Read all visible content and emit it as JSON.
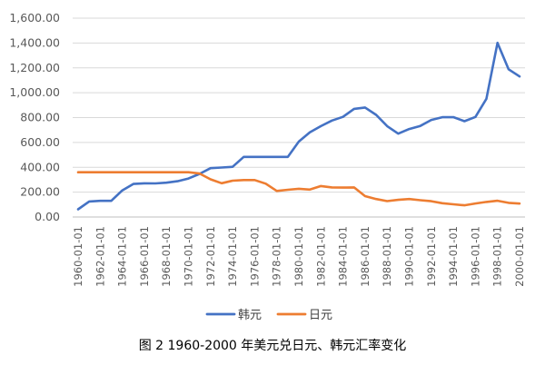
{
  "chart_data": {
    "type": "line",
    "title": "",
    "xlabel": "",
    "ylabel": "",
    "ylim": [
      0,
      1600
    ],
    "yticks": [
      "0.00",
      "200.00",
      "400.00",
      "600.00",
      "800.00",
      "1,000.00",
      "1,200.00",
      "1,400.00",
      "1,600.00"
    ],
    "ytick_values": [
      0,
      200,
      400,
      600,
      800,
      1000,
      1200,
      1400,
      1600
    ],
    "xtick_labels": [
      "1960-01-01",
      "1962-01-01",
      "1964-01-01",
      "1966-01-01",
      "1968-01-01",
      "1970-01-01",
      "1972-01-01",
      "1974-01-01",
      "1976-01-01",
      "1978-01-01",
      "1980-01-01",
      "1982-01-01",
      "1984-01-01",
      "1986-01-01",
      "1988-01-01",
      "1990-01-01",
      "1992-01-01",
      "1994-01-01",
      "1996-01-01",
      "1998-01-01",
      "2000-01-01"
    ],
    "x": [
      "1960-01-01",
      "1961-01-01",
      "1962-01-01",
      "1963-01-01",
      "1964-01-01",
      "1965-01-01",
      "1966-01-01",
      "1967-01-01",
      "1968-01-01",
      "1969-01-01",
      "1970-01-01",
      "1971-01-01",
      "1972-01-01",
      "1973-01-01",
      "1974-01-01",
      "1975-01-01",
      "1976-01-01",
      "1977-01-01",
      "1978-01-01",
      "1979-01-01",
      "1980-01-01",
      "1981-01-01",
      "1982-01-01",
      "1983-01-01",
      "1984-01-01",
      "1985-01-01",
      "1986-01-01",
      "1987-01-01",
      "1988-01-01",
      "1989-01-01",
      "1990-01-01",
      "1991-01-01",
      "1992-01-01",
      "1993-01-01",
      "1994-01-01",
      "1995-01-01",
      "1996-01-01",
      "1997-01-01",
      "1998-01-01",
      "1999-01-01",
      "2000-01-01"
    ],
    "series": [
      {
        "name": "韩元",
        "color": "#4472C4",
        "values": [
          62,
          125,
          130,
          130,
          214,
          266,
          271,
          270,
          276,
          288,
          310,
          347,
          393,
          398,
          404,
          484,
          484,
          484,
          484,
          484,
          607,
          681,
          731,
          776,
          806,
          870,
          881,
          822,
          731,
          671,
          708,
          733,
          781,
          803,
          804,
          771,
          805,
          951,
          1401,
          1189,
          1131
        ]
      },
      {
        "name": "日元",
        "color": "#ED7D31",
        "values": [
          360,
          360,
          360,
          360,
          360,
          360,
          360,
          360,
          360,
          360,
          360,
          350,
          303,
          272,
          292,
          297,
          297,
          268,
          210,
          219,
          227,
          221,
          249,
          238,
          237,
          238,
          168,
          145,
          128,
          138,
          145,
          135,
          127,
          111,
          102,
          94,
          109,
          121,
          131,
          114,
          108
        ]
      }
    ],
    "legend_position": "bottom",
    "grid": true
  },
  "caption": "图 2 1960-2000 年美元兑日元、韩元汇率变化"
}
